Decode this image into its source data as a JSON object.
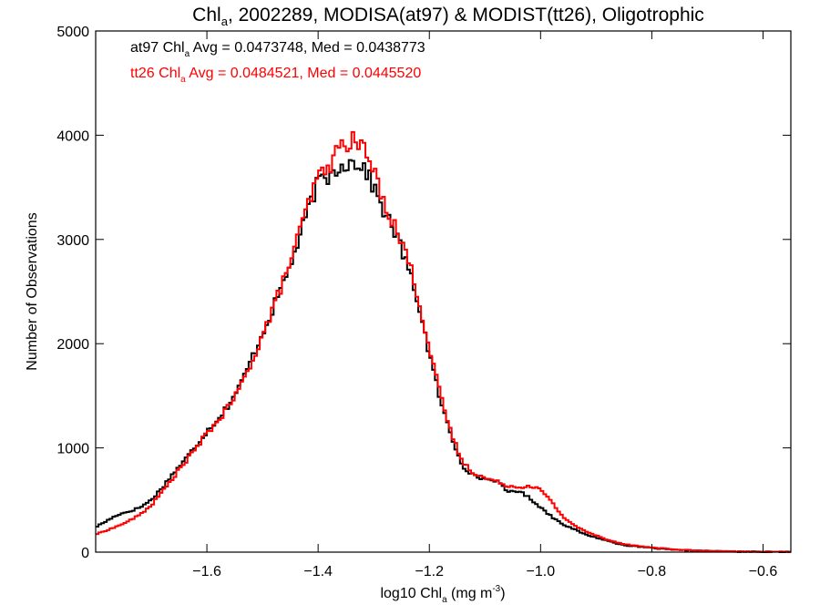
{
  "chart_data": {
    "type": "line",
    "title": {
      "parts": [
        {
          "text": "Chl",
          "sub": false
        },
        {
          "text": "a",
          "sub": true
        },
        {
          "text": ", 2002289, MODISA(at97) & MODIST(tt26), Oligotrophic",
          "sub": false
        }
      ]
    },
    "xlabel": {
      "parts": [
        {
          "text": "log10 Chl",
          "sub": false
        },
        {
          "text": "a",
          "sub": true
        },
        {
          "text": " (mg m",
          "sub": false
        },
        {
          "text": "-3",
          "sup": true
        },
        {
          "text": ")",
          "sub": false
        }
      ]
    },
    "ylabel": "Number of Observations",
    "xlim": [
      -1.8,
      -0.55
    ],
    "ylim": [
      0,
      5000
    ],
    "xticks": [
      -1.6,
      -1.4,
      -1.2,
      -1.0,
      -0.8,
      -0.6
    ],
    "xtick_labels": [
      "−1.6",
      "−1.4",
      "−1.2",
      "−1.0",
      "−0.8",
      "−0.6"
    ],
    "yticks": [
      0,
      1000,
      2000,
      3000,
      4000,
      5000
    ],
    "ytick_labels": [
      "0",
      "1000",
      "2000",
      "3000",
      "4000",
      "5000"
    ],
    "grid": false,
    "annotations": [
      {
        "color": "#000000",
        "parts": [
          {
            "text": "at97 Chl",
            "sub": false
          },
          {
            "text": "a",
            "sub": true
          },
          {
            "text": " Avg = 0.0473748, Med = 0.0438773",
            "sub": false
          }
        ]
      },
      {
        "color": "#ff0000",
        "parts": [
          {
            "text": "tt26 Chl",
            "sub": false
          },
          {
            "text": "a",
            "sub": true
          },
          {
            "text": " Avg = 0.0484521, Med = 0.0445520",
            "sub": false
          }
        ]
      }
    ],
    "series": [
      {
        "color": "#000000",
        "step": "histogram",
        "points": [
          [
            -1.8,
            240
          ],
          [
            -1.78,
            300
          ],
          [
            -1.76,
            360
          ],
          [
            -1.74,
            390
          ],
          [
            -1.72,
            430
          ],
          [
            -1.7,
            500
          ],
          [
            -1.68,
            620
          ],
          [
            -1.66,
            760
          ],
          [
            -1.64,
            880
          ],
          [
            -1.62,
            1020
          ],
          [
            -1.6,
            1160
          ],
          [
            -1.58,
            1280
          ],
          [
            -1.56,
            1420
          ],
          [
            -1.54,
            1600
          ],
          [
            -1.52,
            1850
          ],
          [
            -1.5,
            2100
          ],
          [
            -1.48,
            2350
          ],
          [
            -1.46,
            2620
          ],
          [
            -1.44,
            2900
          ],
          [
            -1.42,
            3250
          ],
          [
            -1.4,
            3550
          ],
          [
            -1.38,
            3600
          ],
          [
            -1.36,
            3720
          ],
          [
            -1.34,
            3740
          ],
          [
            -1.32,
            3720
          ],
          [
            -1.3,
            3500
          ],
          [
            -1.28,
            3250
          ],
          [
            -1.26,
            3050
          ],
          [
            -1.24,
            2750
          ],
          [
            -1.22,
            2400
          ],
          [
            -1.2,
            1900
          ],
          [
            -1.18,
            1450
          ],
          [
            -1.16,
            1100
          ],
          [
            -1.14,
            830
          ],
          [
            -1.12,
            730
          ],
          [
            -1.1,
            700
          ],
          [
            -1.08,
            690
          ],
          [
            -1.06,
            580
          ],
          [
            -1.04,
            590
          ],
          [
            -1.02,
            520
          ],
          [
            -1.0,
            430
          ],
          [
            -0.98,
            340
          ],
          [
            -0.96,
            270
          ],
          [
            -0.94,
            220
          ],
          [
            -0.92,
            170
          ],
          [
            -0.9,
            140
          ],
          [
            -0.88,
            110
          ],
          [
            -0.86,
            80
          ],
          [
            -0.84,
            60
          ],
          [
            -0.82,
            50
          ],
          [
            -0.8,
            40
          ],
          [
            -0.78,
            30
          ],
          [
            -0.76,
            22
          ],
          [
            -0.74,
            18
          ],
          [
            -0.72,
            14
          ],
          [
            -0.7,
            10
          ],
          [
            -0.68,
            8
          ],
          [
            -0.66,
            6
          ],
          [
            -0.64,
            5
          ],
          [
            -0.62,
            4
          ],
          [
            -0.6,
            3
          ],
          [
            -0.58,
            2
          ],
          [
            -0.56,
            2
          ]
        ]
      },
      {
        "color": "#ff0000",
        "step": "histogram",
        "points": [
          [
            -1.8,
            170
          ],
          [
            -1.78,
            210
          ],
          [
            -1.76,
            250
          ],
          [
            -1.74,
            300
          ],
          [
            -1.72,
            360
          ],
          [
            -1.7,
            450
          ],
          [
            -1.68,
            580
          ],
          [
            -1.66,
            720
          ],
          [
            -1.64,
            860
          ],
          [
            -1.62,
            990
          ],
          [
            -1.6,
            1140
          ],
          [
            -1.58,
            1260
          ],
          [
            -1.56,
            1400
          ],
          [
            -1.54,
            1580
          ],
          [
            -1.52,
            1820
          ],
          [
            -1.5,
            2080
          ],
          [
            -1.48,
            2350
          ],
          [
            -1.46,
            2640
          ],
          [
            -1.44,
            2950
          ],
          [
            -1.42,
            3300
          ],
          [
            -1.4,
            3600
          ],
          [
            -1.38,
            3700
          ],
          [
            -1.36,
            3900
          ],
          [
            -1.34,
            3950
          ],
          [
            -1.32,
            3900
          ],
          [
            -1.3,
            3650
          ],
          [
            -1.28,
            3350
          ],
          [
            -1.26,
            3100
          ],
          [
            -1.24,
            2850
          ],
          [
            -1.22,
            2450
          ],
          [
            -1.2,
            1950
          ],
          [
            -1.18,
            1500
          ],
          [
            -1.16,
            1130
          ],
          [
            -1.14,
            860
          ],
          [
            -1.12,
            760
          ],
          [
            -1.1,
            710
          ],
          [
            -1.08,
            680
          ],
          [
            -1.06,
            640
          ],
          [
            -1.04,
            620
          ],
          [
            -1.02,
            640
          ],
          [
            -1.0,
            600
          ],
          [
            -0.98,
            480
          ],
          [
            -0.96,
            340
          ],
          [
            -0.94,
            260
          ],
          [
            -0.92,
            200
          ],
          [
            -0.9,
            160
          ],
          [
            -0.88,
            120
          ],
          [
            -0.86,
            90
          ],
          [
            -0.84,
            70
          ],
          [
            -0.82,
            55
          ],
          [
            -0.8,
            45
          ],
          [
            -0.78,
            35
          ],
          [
            -0.76,
            26
          ],
          [
            -0.74,
            20
          ],
          [
            -0.72,
            16
          ],
          [
            -0.7,
            12
          ],
          [
            -0.68,
            9
          ],
          [
            -0.66,
            7
          ],
          [
            -0.64,
            6
          ],
          [
            -0.62,
            5
          ],
          [
            -0.6,
            4
          ],
          [
            -0.58,
            3
          ],
          [
            -0.56,
            3
          ]
        ]
      }
    ]
  }
}
